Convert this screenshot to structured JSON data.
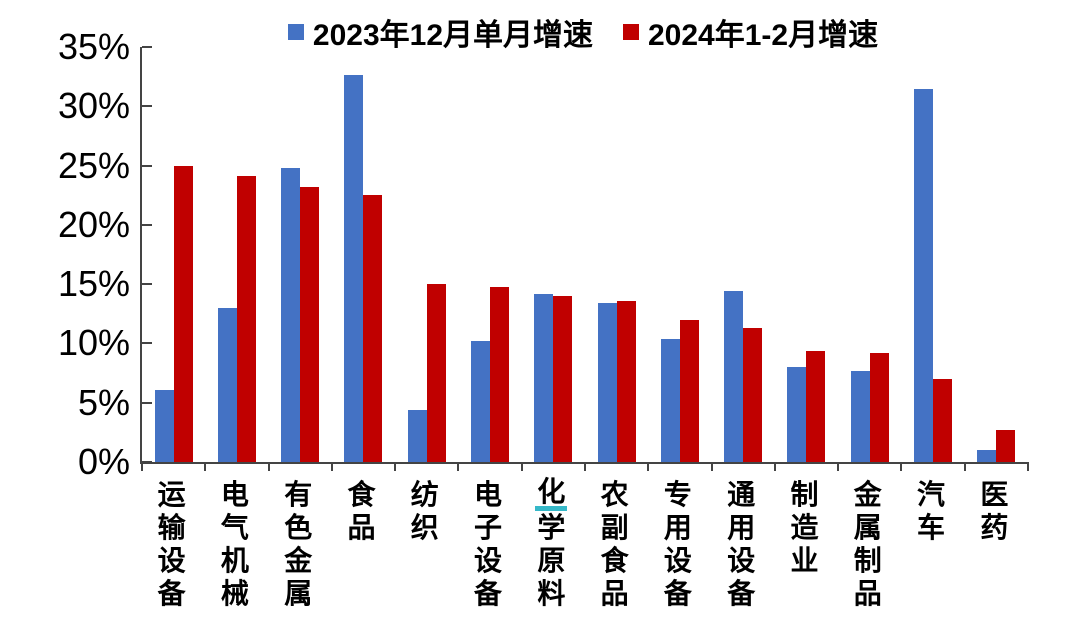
{
  "chart_data": {
    "type": "bar",
    "title": "",
    "xlabel": "",
    "ylabel": "",
    "ylim": [
      0,
      35
    ],
    "grid": false,
    "legend_position": "top",
    "y_tick_labels": [
      "35%",
      "30%",
      "25%",
      "20%",
      "15%",
      "10%",
      "5%",
      "0%"
    ],
    "y_tick_values": [
      35,
      30,
      25,
      20,
      15,
      10,
      5,
      0
    ],
    "categories": [
      "运输设备",
      "电气机械",
      "有色金属",
      "食品",
      "纺织",
      "电子设备",
      "化学原料",
      "农副食品",
      "专用设备",
      "通用设备",
      "制造业",
      "金属制品",
      "汽车",
      "医药"
    ],
    "series": [
      {
        "name": "2023年12月单月增速",
        "color": "#4472C4",
        "values": [
          6.1,
          13.0,
          24.8,
          32.6,
          4.4,
          10.2,
          14.2,
          13.4,
          10.4,
          14.4,
          8.0,
          7.7,
          31.5,
          1.0
        ]
      },
      {
        "name": "2024年1-2月增速",
        "color": "#C00000",
        "values": [
          25.0,
          24.1,
          23.2,
          22.5,
          15.0,
          14.8,
          14.0,
          13.6,
          12.0,
          11.3,
          9.4,
          9.2,
          7.0,
          2.7
        ]
      }
    ],
    "annotation": {
      "description": "teal underline mark below first character of 化学原料 label",
      "category_index": 6,
      "char_index": 0,
      "color": "#35b8c8"
    },
    "axis_color": "#444444",
    "text_color": "#000000"
  }
}
